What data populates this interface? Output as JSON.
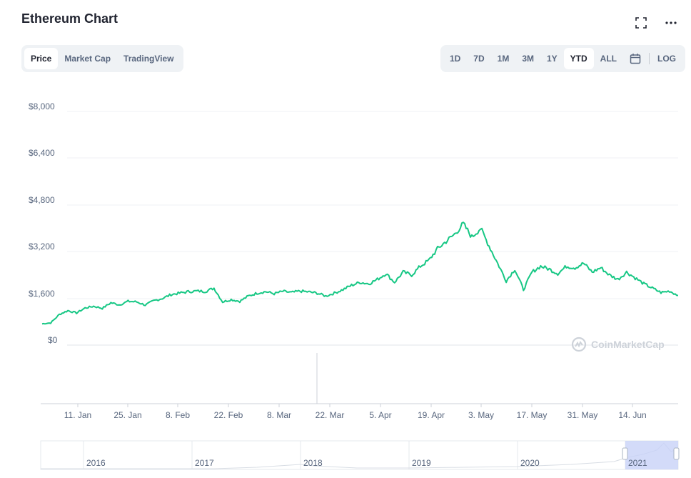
{
  "header": {
    "title": "Ethereum Chart",
    "fullscreen_icon": "fullscreen-icon",
    "more_icon": "more-horizontal-icon"
  },
  "left_tabs": [
    {
      "label": "Price",
      "active": true
    },
    {
      "label": "Market Cap",
      "active": false
    },
    {
      "label": "TradingView",
      "active": false
    }
  ],
  "range_tabs": [
    {
      "label": "1D",
      "active": false
    },
    {
      "label": "7D",
      "active": false
    },
    {
      "label": "1M",
      "active": false
    },
    {
      "label": "3M",
      "active": false
    },
    {
      "label": "1Y",
      "active": false
    },
    {
      "label": "YTD",
      "active": true
    },
    {
      "label": "ALL",
      "active": false
    }
  ],
  "calendar_icon": "calendar-icon",
  "log_label": "LOG",
  "watermark": "CoinMarketCap",
  "colors": {
    "line": "#16c784",
    "grid": "#eff2f5",
    "axis_text": "#58667e",
    "navigator_selection": "#c8d2f7"
  },
  "chart_data": {
    "type": "line",
    "title": "Ethereum Chart",
    "series": [
      {
        "name": "Price",
        "values": [
          730,
          760,
          1050,
          1180,
          1100,
          1270,
          1330,
          1260,
          1450,
          1380,
          1500,
          1480,
          1370,
          1520,
          1600,
          1730,
          1780,
          1830,
          1850,
          1840,
          1950,
          1480,
          1560,
          1500,
          1680,
          1780,
          1830,
          1760,
          1840,
          1800,
          1850,
          1820,
          1780,
          1680,
          1780,
          1900,
          2050,
          2150,
          2100,
          2250,
          2450,
          2150,
          2500,
          2400,
          2700,
          2900,
          3300,
          3550,
          3800,
          4150,
          3700,
          4000,
          3400,
          2800,
          2200,
          2600,
          1900,
          2500,
          2700,
          2600,
          2450,
          2700,
          2650,
          2800,
          2500,
          2650,
          2400,
          2250,
          2500,
          2300,
          2100,
          1950,
          1800,
          1850,
          1700
        ]
      }
    ],
    "x_start": "2021-01-01",
    "x_end": "2021-06-22",
    "xlabel": "",
    "ylabel": "",
    "ylim": [
      0,
      8000
    ],
    "y_ticks": [
      "$8,000",
      "$6,400",
      "$4,800",
      "$3,200",
      "$1,600",
      "$0"
    ],
    "x_ticks": [
      "11. Jan",
      "25. Jan",
      "8. Feb",
      "22. Feb",
      "8. Mar",
      "22. Mar",
      "5. Apr",
      "19. Apr",
      "3. May",
      "17. May",
      "31. May",
      "14. Jun"
    ],
    "navigator_years": [
      "2016",
      "2017",
      "2018",
      "2019",
      "2020",
      "2021"
    ]
  }
}
